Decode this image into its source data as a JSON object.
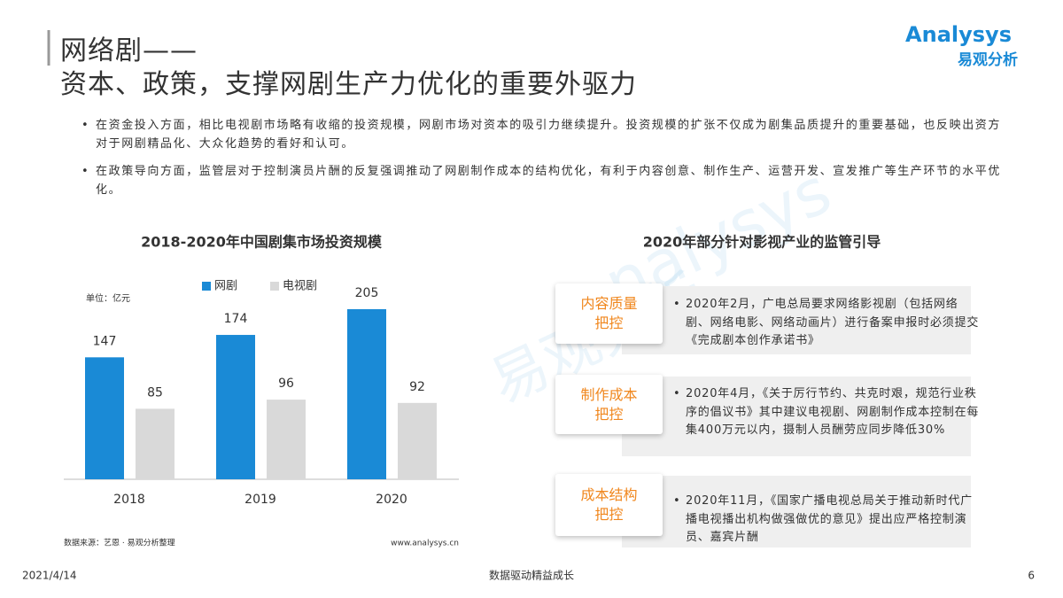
{
  "header": {
    "title_line1": "网络剧——",
    "title_line2": "资本、政策，支撑网剧生产力优化的重要外驱力"
  },
  "logo": {
    "brand": "Analysys",
    "cn": "易观分析"
  },
  "watermark": {
    "brand": "nalysys",
    "cn": "易观分析"
  },
  "bullets": [
    "在资金投入方面，相比电视剧市场略有收缩的投资规模，网剧市场对资本的吸引力继续提升。投资规模的扩张不仅成为剧集品质提升的重要基础，也反映出资方对于网剧精品化、大众化趋势的看好和认可。",
    "在政策导向方面，监管层对于控制演员片酬的反复强调推动了网剧制作成本的结构优化，有利于内容创意、制作生产、运营开发、宣发推广等生产环节的水平优化。"
  ],
  "chart_data": {
    "type": "bar",
    "title": "2018-2020年中国剧集市场投资规模",
    "unit": "单位：亿元",
    "categories": [
      "2018",
      "2019",
      "2020"
    ],
    "series": [
      {
        "name": "网剧",
        "color": "#1a8ad6",
        "values": [
          147,
          174,
          205
        ]
      },
      {
        "name": "电视剧",
        "color": "#d9d9d9",
        "values": [
          85,
          96,
          92
        ]
      }
    ],
    "source": "数据来源：艺恩 · 易观分析整理",
    "site": "www.analysys.cn"
  },
  "policy": {
    "title": "2020年部分针对影视产业的监管引导",
    "items": [
      {
        "label": [
          "内容质量",
          "把控"
        ],
        "text": "2020年2月，广电总局要求网络影视剧（包括网络剧、网络电影、网络动画片）进行备案申报时必须提交《完成剧本创作承诺书》"
      },
      {
        "label": [
          "制作成本",
          "把控"
        ],
        "text": "2020年4月，《关于厉行节约、共克时艰，规范行业秩序的倡议书》其中建议电视剧、网剧制作成本控制在每集400万元以内，摄制人员酬劳应同步降低30%"
      },
      {
        "label": [
          "成本结构",
          "把控"
        ],
        "text": "2020年11月，《国家广播电视总局关于推动新时代广播电视播出机构做强做优的意见》提出应严格控制演员、嘉宾片酬"
      }
    ]
  },
  "footer": {
    "date": "2021/4/14",
    "slogan": "数据驱动精益成长",
    "page": "6"
  }
}
